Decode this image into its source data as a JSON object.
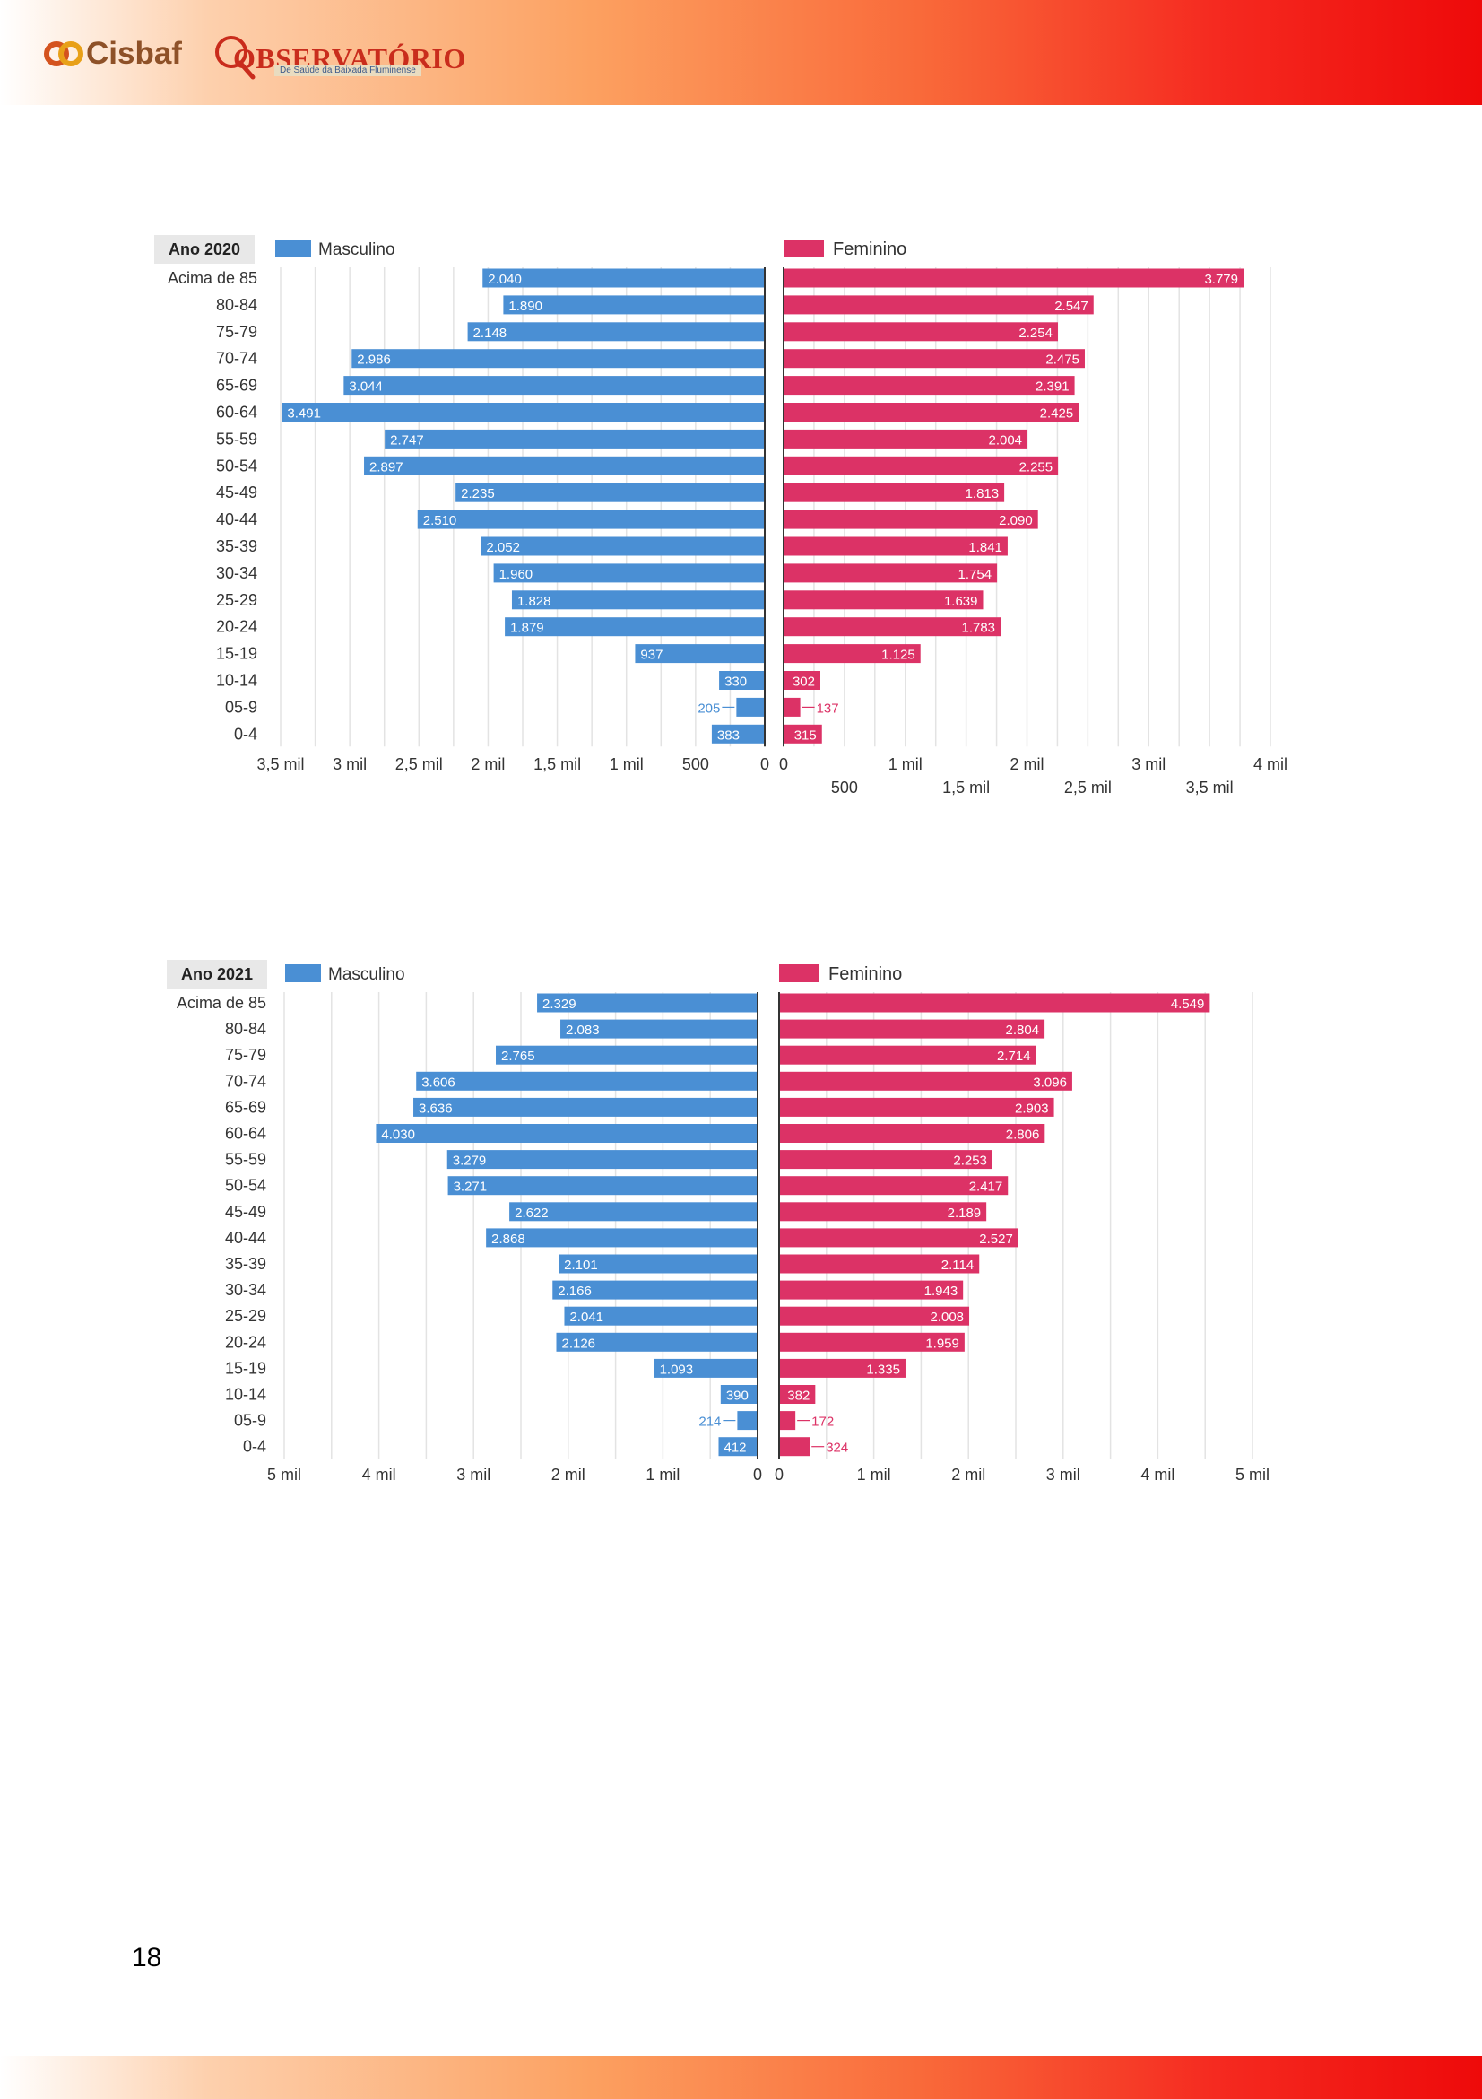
{
  "header": {
    "logo_cisbaf": "Cisbaf",
    "logo_observatorio": "OBSERVATÓRIO",
    "logo_observatorio_sub": "De Saúde da Baixada Fluminense",
    "brand_colors": {
      "start": "#ffffff",
      "mid": "#fca060",
      "end": "#ee0a0a"
    }
  },
  "page_number": "18",
  "chart_data": [
    {
      "type": "bar",
      "orientation": "horizontal-butterfly",
      "year_label": "Ano 2020",
      "categories": [
        "Acima de 85",
        "80-84",
        "75-79",
        "70-74",
        "65-69",
        "60-64",
        "55-59",
        "50-54",
        "45-49",
        "40-44",
        "35-39",
        "30-34",
        "25-29",
        "20-24",
        "15-19",
        "10-14",
        "05-9",
        "0-4"
      ],
      "series": [
        {
          "name": "Masculino",
          "color": "#4a8fd4",
          "side": "left",
          "values": [
            2040,
            1890,
            2148,
            2986,
            3044,
            3491,
            2747,
            2897,
            2235,
            2510,
            2052,
            1960,
            1828,
            1879,
            937,
            330,
            205,
            383
          ],
          "labels": [
            "2.040",
            "1.890",
            "2.148",
            "2.986",
            "3.044",
            "3.491",
            "2.747",
            "2.897",
            "2.235",
            "2.510",
            "2.052",
            "1.960",
            "1.828",
            "1.879",
            "937",
            "330",
            "205",
            "383"
          ]
        },
        {
          "name": "Feminino",
          "color": "#dc3266",
          "side": "right",
          "values": [
            3779,
            2547,
            2254,
            2475,
            2391,
            2425,
            2004,
            2255,
            1813,
            2090,
            1841,
            1754,
            1639,
            1783,
            1125,
            302,
            137,
            315
          ],
          "labels": [
            "3.779",
            "2.547",
            "2.254",
            "2.475",
            "2.391",
            "2.425",
            "2.004",
            "2.255",
            "1.813",
            "2.090",
            "1.841",
            "1.754",
            "1.639",
            "1.783",
            "1.125",
            "302",
            "137",
            "315"
          ]
        }
      ],
      "left_axis": {
        "max": 3500,
        "ticks": [
          3500,
          3000,
          2500,
          2000,
          1500,
          1000,
          500,
          0
        ],
        "tick_labels": [
          "3,5 mil",
          "3 mil",
          "2,5 mil",
          "2 mil",
          "1,5 mil",
          "1 mil",
          "500",
          "0"
        ]
      },
      "right_axis": {
        "max": 4000,
        "ticks": [
          0,
          1000,
          2000,
          3000,
          4000
        ],
        "tick_labels": [
          "0",
          "1 mil",
          "2 mil",
          "3 mil",
          "4 mil"
        ],
        "minor_ticks": [
          500,
          1500,
          2500,
          3500
        ],
        "minor_tick_labels": [
          "500",
          "1,5 mil",
          "2,5 mil",
          "3,5 mil"
        ]
      },
      "grid": true,
      "legend": "top"
    },
    {
      "type": "bar",
      "orientation": "horizontal-butterfly",
      "year_label": "Ano 2021",
      "categories": [
        "Acima de 85",
        "80-84",
        "75-79",
        "70-74",
        "65-69",
        "60-64",
        "55-59",
        "50-54",
        "45-49",
        "40-44",
        "35-39",
        "30-34",
        "25-29",
        "20-24",
        "15-19",
        "10-14",
        "05-9",
        "0-4"
      ],
      "series": [
        {
          "name": "Masculino",
          "color": "#4a8fd4",
          "side": "left",
          "values": [
            2329,
            2083,
            2765,
            3606,
            3636,
            4030,
            3279,
            3271,
            2622,
            2868,
            2101,
            2166,
            2041,
            2126,
            1093,
            390,
            214,
            412
          ],
          "labels": [
            "2.329",
            "2.083",
            "2.765",
            "3.606",
            "3.636",
            "4.030",
            "3.279",
            "3.271",
            "2.622",
            "2.868",
            "2.101",
            "2.166",
            "2.041",
            "2.126",
            "1.093",
            "390",
            "214",
            "412"
          ]
        },
        {
          "name": "Feminino",
          "color": "#dc3266",
          "side": "right",
          "values": [
            4549,
            2804,
            2714,
            3096,
            2903,
            2806,
            2253,
            2417,
            2189,
            2527,
            2114,
            1943,
            2008,
            1959,
            1335,
            382,
            172,
            324
          ],
          "labels": [
            "4.549",
            "2.804",
            "2.714",
            "3.096",
            "2.903",
            "2.806",
            "2.253",
            "2.417",
            "2.189",
            "2.527",
            "2.114",
            "1.943",
            "2.008",
            "1.959",
            "1.335",
            "382",
            "172",
            "324"
          ]
        }
      ],
      "left_axis": {
        "max": 5000,
        "ticks": [
          5000,
          4000,
          3000,
          2000,
          1000,
          0
        ],
        "tick_labels": [
          "5 mil",
          "4 mil",
          "3 mil",
          "2 mil",
          "1 mil",
          "0"
        ]
      },
      "right_axis": {
        "max": 5000,
        "ticks": [
          0,
          1000,
          2000,
          3000,
          4000,
          5000
        ],
        "tick_labels": [
          "0",
          "1 mil",
          "2 mil",
          "3 mil",
          "4 mil",
          "5 mil"
        ]
      },
      "grid": true,
      "legend": "top"
    }
  ]
}
